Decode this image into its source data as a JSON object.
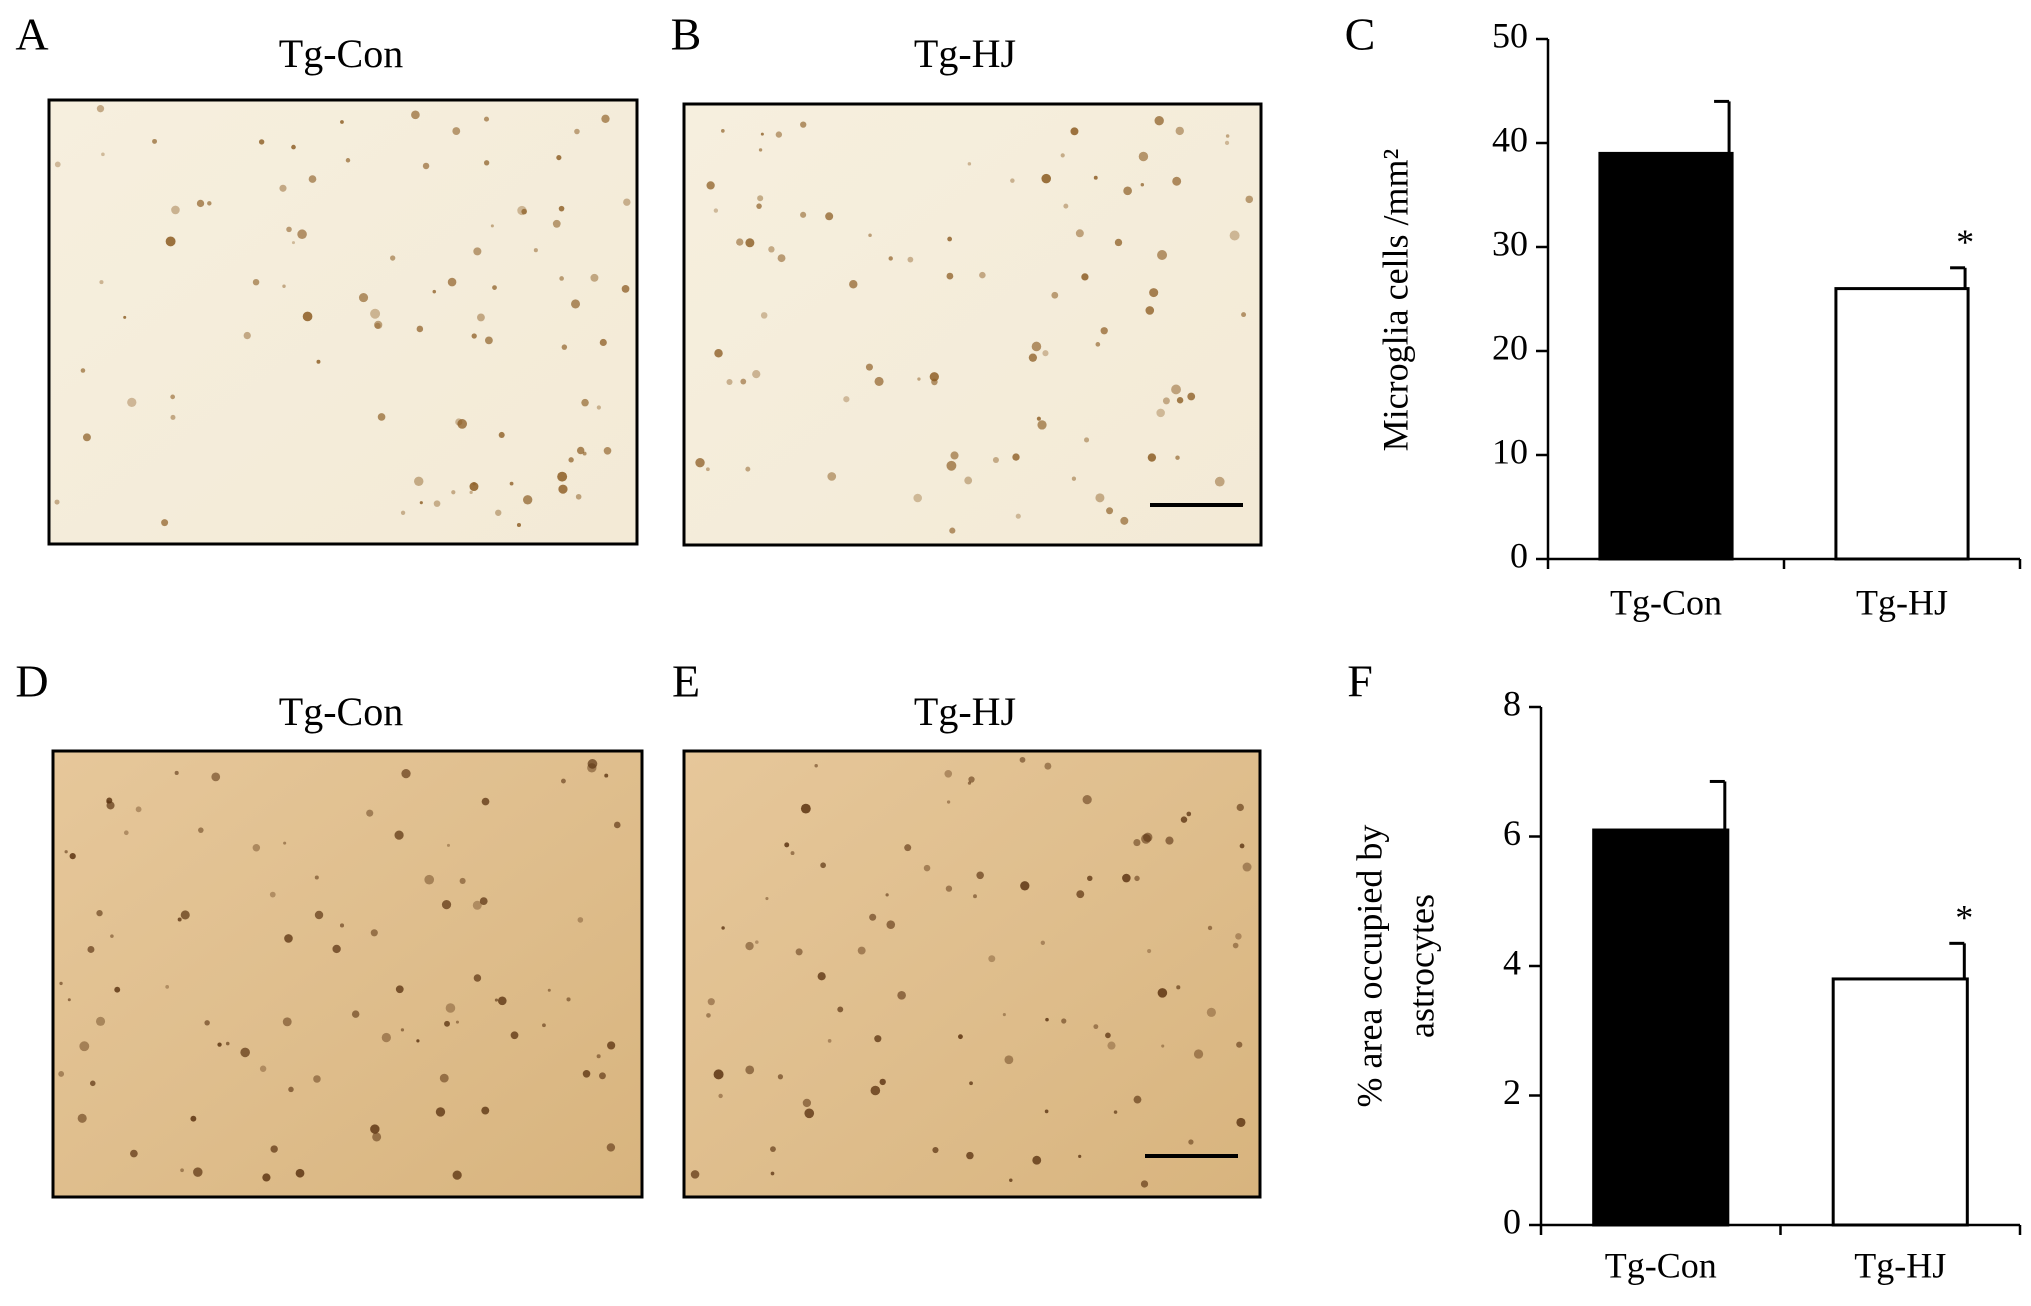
{
  "panels": [
    {
      "letter": "A",
      "title": "Tg-Con"
    },
    {
      "letter": "B",
      "title": "Tg-HJ"
    },
    {
      "letter": "D",
      "title": "Tg-Con"
    },
    {
      "letter": "E",
      "title": "Tg-HJ"
    }
  ],
  "chart_data": [
    {
      "type": "bar",
      "panel": "C",
      "ylabel": [
        "Microglia cells /mm²"
      ],
      "categories": [
        "Tg-Con",
        "Tg-HJ"
      ],
      "values": [
        39,
        26
      ],
      "errors": [
        5,
        2
      ],
      "significance": [
        null,
        "*"
      ],
      "colors": [
        "#000000",
        "#ffffff"
      ],
      "ylim": [
        0,
        50
      ],
      "yticks": [
        0,
        10,
        20,
        30,
        40,
        50
      ]
    },
    {
      "type": "bar",
      "panel": "F",
      "ylabel": [
        "% area occupied by",
        "astrocytes"
      ],
      "categories": [
        "Tg-Con",
        "Tg-HJ"
      ],
      "values": [
        6.1,
        3.8
      ],
      "errors": [
        0.75,
        0.55
      ],
      "significance": [
        null,
        "*"
      ],
      "colors": [
        "#000000",
        "#ffffff"
      ],
      "ylim": [
        0,
        8
      ],
      "yticks": [
        0,
        2,
        4,
        6,
        8
      ]
    }
  ]
}
